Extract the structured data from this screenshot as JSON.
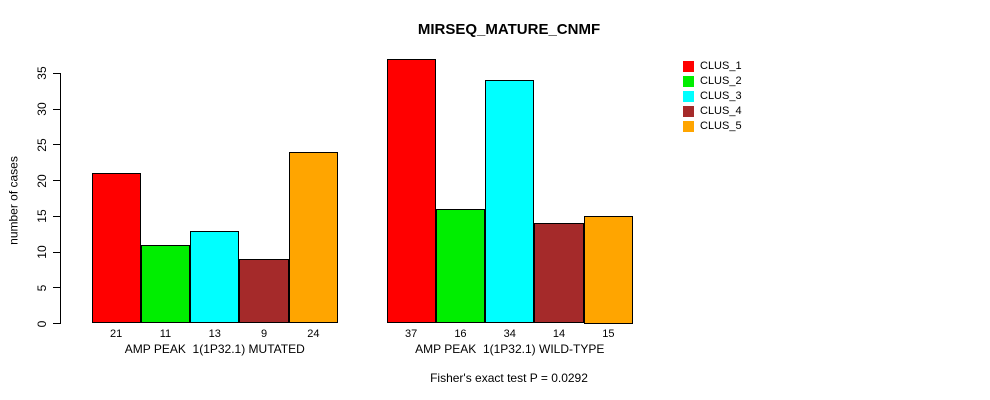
{
  "chart_data": {
    "type": "bar",
    "title": "MIRSEQ_MATURE_CNMF",
    "ylabel": "number of cases",
    "xlabel": "",
    "ylim": [
      0,
      37
    ],
    "yticks": [
      0,
      5,
      10,
      15,
      20,
      25,
      30,
      35
    ],
    "grid": false,
    "legend_position": "top-right",
    "categories": [
      "AMP PEAK  1(1P32.1) MUTATED",
      "AMP PEAK  1(1P32.1) WILD-TYPE"
    ],
    "series": [
      {
        "name": "CLUS_1",
        "color": "#FF0000",
        "values": [
          21,
          37
        ]
      },
      {
        "name": "CLUS_2",
        "color": "#00EE00",
        "values": [
          11,
          16
        ]
      },
      {
        "name": "CLUS_3",
        "color": "#00FFFF",
        "values": [
          13,
          34
        ]
      },
      {
        "name": "CLUS_4",
        "color": "#A52A2A",
        "values": [
          9,
          14
        ]
      },
      {
        "name": "CLUS_5",
        "color": "#FFA500",
        "values": [
          24,
          15
        ]
      }
    ],
    "bar_value_labels": [
      [
        21,
        11,
        13,
        9,
        24
      ],
      [
        37,
        16,
        34,
        14,
        15
      ]
    ],
    "annotation": "Fisher's exact test P = 0.0292"
  }
}
